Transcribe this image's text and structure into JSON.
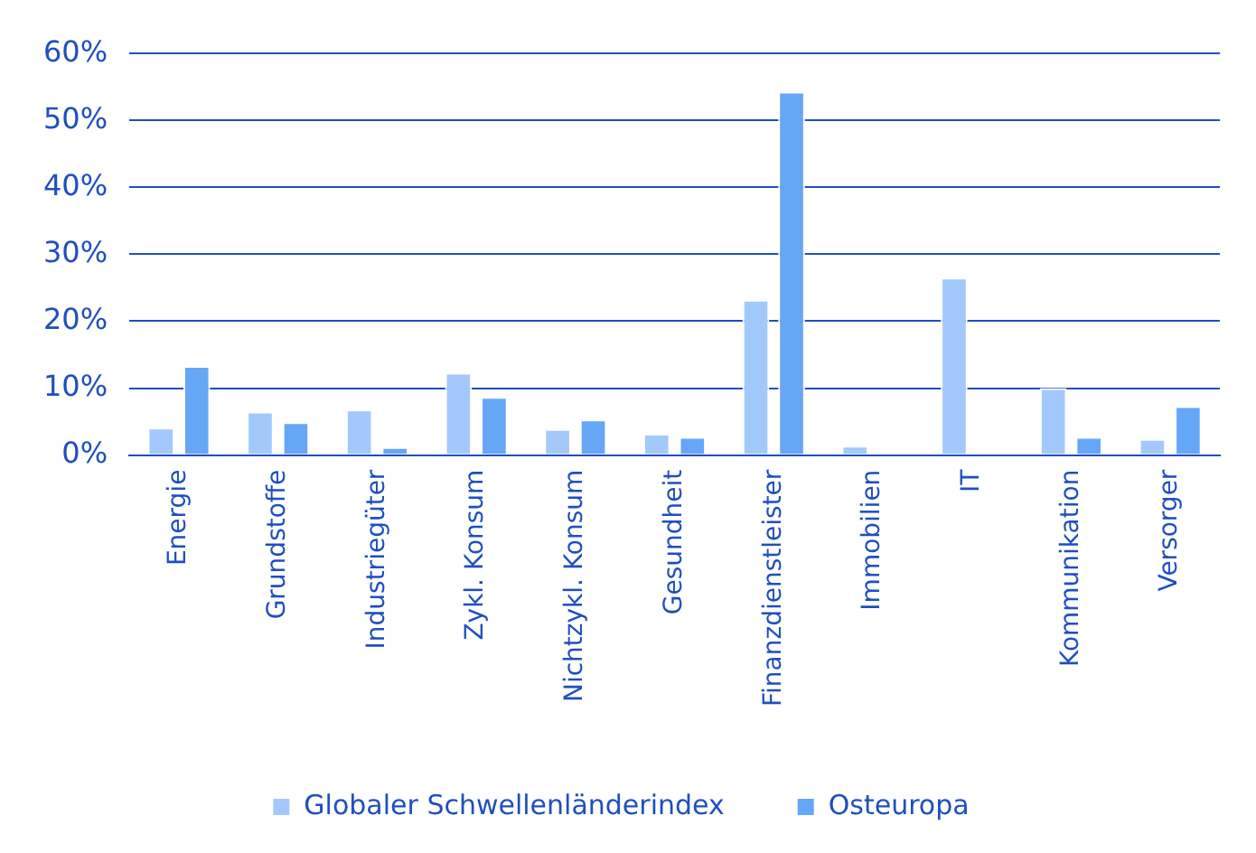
{
  "chart_data": {
    "type": "bar",
    "categories": [
      "Energie",
      "Grundstoffe",
      "Industriegüter",
      "Zykl. Konsum",
      "Nichtzykl. Konsum",
      "Gesundheit",
      "Finanzdienstleister",
      "Immobilien",
      "IT",
      "Kommunikation",
      "Versorger"
    ],
    "series": [
      {
        "name": "Globaler Schwellenländerindex",
        "color": "#a3c9fc",
        "values": [
          4.1,
          6.5,
          6.8,
          12.3,
          3.9,
          3.2,
          23.2,
          1.4,
          26.5,
          10.0,
          2.4
        ]
      },
      {
        "name": "Osteuropa",
        "color": "#66a6f7",
        "values": [
          13.3,
          4.9,
          1.2,
          8.7,
          5.3,
          2.7,
          54.3,
          0,
          0,
          2.7,
          7.3
        ]
      }
    ],
    "ylim": [
      0,
      60
    ],
    "yticks": [
      {
        "value": 0,
        "label": "0%"
      },
      {
        "value": 10,
        "label": "10%"
      },
      {
        "value": 20,
        "label": "20%"
      },
      {
        "value": 30,
        "label": "30%"
      },
      {
        "value": 40,
        "label": "40%"
      },
      {
        "value": 50,
        "label": "50%"
      },
      {
        "value": 60,
        "label": "60%"
      }
    ],
    "grid": "y",
    "legend": "bottom"
  }
}
